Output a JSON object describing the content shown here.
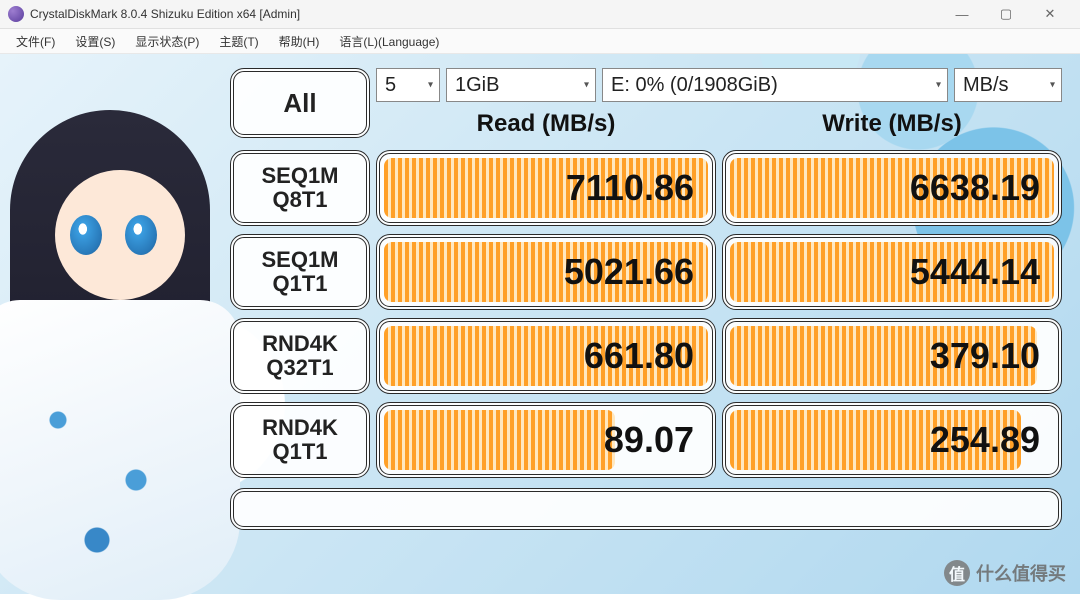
{
  "window": {
    "title": "CrystalDiskMark 8.0.4 Shizuku Edition x64 [Admin]",
    "minimize_glyph": "—",
    "maximize_glyph": "▢",
    "close_glyph": "✕"
  },
  "menu": {
    "items": [
      "文件(F)",
      "设置(S)",
      "显示状态(P)",
      "主题(T)",
      "帮助(H)",
      "语言(L)(Language)"
    ]
  },
  "controls": {
    "all_button_label": "All",
    "count": "5",
    "size": "1GiB",
    "drive": "E: 0% (0/1908GiB)",
    "unit": "MB/s"
  },
  "columns": {
    "read_header": "Read (MB/s)",
    "write_header": "Write (MB/s)"
  },
  "tests": [
    {
      "label_l1": "SEQ1M",
      "label_l2": "Q8T1",
      "read": "7110.86",
      "write": "6638.19",
      "read_bar_pct": 100,
      "write_bar_pct": 100
    },
    {
      "label_l1": "SEQ1M",
      "label_l2": "Q1T1",
      "read": "5021.66",
      "write": "5444.14",
      "read_bar_pct": 100,
      "write_bar_pct": 100
    },
    {
      "label_l1": "RND4K",
      "label_l2": "Q32T1",
      "read": "661.80",
      "write": "379.10",
      "read_bar_pct": 100,
      "write_bar_pct": 95
    },
    {
      "label_l1": "RND4K",
      "label_l2": "Q1T1",
      "read": "89.07",
      "write": "254.89",
      "read_bar_pct": 72,
      "write_bar_pct": 90
    }
  ],
  "colors": {
    "bar_primary": "#ffa028",
    "bar_stripe": "#ffe8c0",
    "slab_border": "#2a2a2a",
    "text": "#111111",
    "titlebar_bg": "#f5f5f5",
    "menubar_bg": "#fafafa"
  },
  "watermark": {
    "text": "什么值得买",
    "icon_glyph": "值"
  }
}
